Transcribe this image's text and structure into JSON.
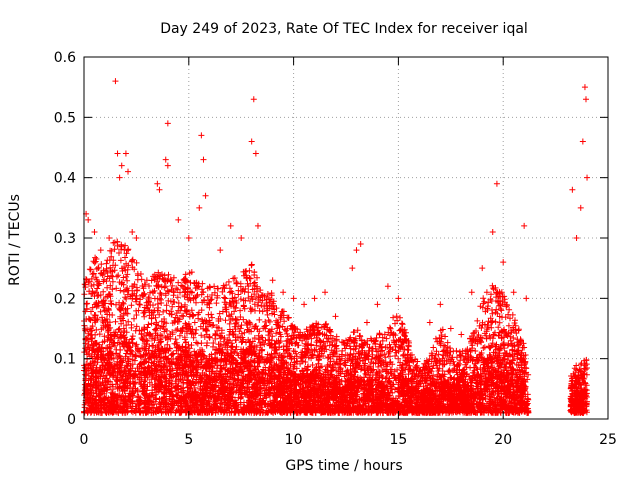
{
  "chart_data": {
    "type": "scatter",
    "title": "Day 249 of 2023, Rate Of TEC Index for receiver iqal",
    "xlabel": "GPS time / hours",
    "ylabel": "ROTI / TECUs",
    "xlim": [
      0,
      25
    ],
    "ylim": [
      0,
      0.6
    ],
    "x_ticks": [
      0,
      5,
      10,
      15,
      20,
      25
    ],
    "x_tick_labels": [
      "0",
      "5",
      "10",
      "15",
      "20",
      "25"
    ],
    "y_ticks": [
      0,
      0.1,
      0.2,
      0.3,
      0.4,
      0.5,
      0.6
    ],
    "y_tick_labels": [
      "0",
      "0.1",
      "0.2",
      "0.3",
      "0.4",
      "0.5",
      "0.6"
    ],
    "grid": true,
    "marker": "+",
    "colors": {
      "points": "#ff0000",
      "grid": "#a0a0a0",
      "axis": "#000000"
    },
    "series": [
      {
        "name": "ROTI",
        "points": [
          [
            0.1,
            0.34
          ],
          [
            0.2,
            0.33
          ],
          [
            0.5,
            0.31
          ],
          [
            0.8,
            0.28
          ],
          [
            1.2,
            0.3
          ],
          [
            1.5,
            0.56
          ],
          [
            1.6,
            0.44
          ],
          [
            1.7,
            0.4
          ],
          [
            1.8,
            0.42
          ],
          [
            2.0,
            0.44
          ],
          [
            2.1,
            0.41
          ],
          [
            2.3,
            0.31
          ],
          [
            2.5,
            0.3
          ],
          [
            3.0,
            0.23
          ],
          [
            3.5,
            0.39
          ],
          [
            3.6,
            0.38
          ],
          [
            3.9,
            0.43
          ],
          [
            4.0,
            0.42
          ],
          [
            4.0,
            0.49
          ],
          [
            4.5,
            0.33
          ],
          [
            5.0,
            0.3
          ],
          [
            5.5,
            0.35
          ],
          [
            5.6,
            0.47
          ],
          [
            5.7,
            0.43
          ],
          [
            5.8,
            0.37
          ],
          [
            6.5,
            0.28
          ],
          [
            7.0,
            0.32
          ],
          [
            7.5,
            0.3
          ],
          [
            8.0,
            0.46
          ],
          [
            8.1,
            0.53
          ],
          [
            8.2,
            0.44
          ],
          [
            8.3,
            0.32
          ],
          [
            9.0,
            0.23
          ],
          [
            9.5,
            0.21
          ],
          [
            10.0,
            0.2
          ],
          [
            10.5,
            0.19
          ],
          [
            11.0,
            0.2
          ],
          [
            11.5,
            0.21
          ],
          [
            12.0,
            0.17
          ],
          [
            12.5,
            0.13
          ],
          [
            12.8,
            0.25
          ],
          [
            13.0,
            0.28
          ],
          [
            13.2,
            0.29
          ],
          [
            13.5,
            0.16
          ],
          [
            14.0,
            0.19
          ],
          [
            14.5,
            0.22
          ],
          [
            15.0,
            0.2
          ],
          [
            15.5,
            0.1
          ],
          [
            16.0,
            0.08
          ],
          [
            16.5,
            0.16
          ],
          [
            17.0,
            0.19
          ],
          [
            17.5,
            0.15
          ],
          [
            18.0,
            0.14
          ],
          [
            18.5,
            0.21
          ],
          [
            19.0,
            0.25
          ],
          [
            19.5,
            0.31
          ],
          [
            19.7,
            0.39
          ],
          [
            20.0,
            0.26
          ],
          [
            20.5,
            0.21
          ],
          [
            21.0,
            0.32
          ],
          [
            21.1,
            0.2
          ],
          [
            23.3,
            0.38
          ],
          [
            23.5,
            0.3
          ],
          [
            23.7,
            0.35
          ],
          [
            23.8,
            0.46
          ],
          [
            23.9,
            0.55
          ],
          [
            23.95,
            0.53
          ],
          [
            24.0,
            0.4
          ]
        ]
      }
    ],
    "density_envelope": {
      "x": [
        0,
        0.5,
        1,
        1.5,
        2,
        2.5,
        3,
        3.5,
        4,
        4.5,
        5,
        5.5,
        6,
        6.5,
        7,
        7.5,
        8,
        8.5,
        9,
        9.5,
        10,
        10.5,
        11,
        11.5,
        12,
        12.5,
        13,
        13.5,
        14,
        14.5,
        15,
        15.5,
        16,
        16.5,
        17,
        17.5,
        18,
        18.5,
        19,
        19.5,
        20,
        20.5,
        21,
        21.2,
        23.2,
        23.5,
        24
      ],
      "y": [
        0.22,
        0.26,
        0.24,
        0.3,
        0.28,
        0.26,
        0.21,
        0.24,
        0.23,
        0.22,
        0.24,
        0.22,
        0.21,
        0.21,
        0.23,
        0.23,
        0.25,
        0.2,
        0.2,
        0.17,
        0.15,
        0.14,
        0.15,
        0.15,
        0.13,
        0.12,
        0.14,
        0.12,
        0.13,
        0.15,
        0.17,
        0.12,
        0.08,
        0.09,
        0.15,
        0.11,
        0.1,
        0.13,
        0.19,
        0.22,
        0.2,
        0.16,
        0.12,
        0.06,
        0.06,
        0.08,
        0.09
      ]
    }
  }
}
